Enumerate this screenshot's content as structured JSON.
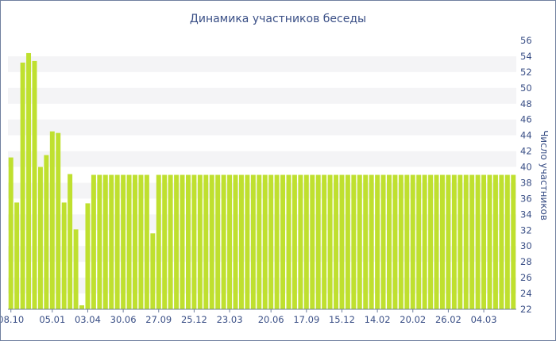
{
  "chart_data": {
    "type": "bar",
    "title": "Динамика участников беседы",
    "ylabel": "Число участников",
    "xlabel": "",
    "ylim": [
      22,
      56
    ],
    "y_ticks": [
      22,
      24,
      26,
      28,
      30,
      32,
      34,
      36,
      38,
      40,
      42,
      44,
      46,
      48,
      50,
      52,
      54,
      56
    ],
    "y_axis_position": "right",
    "grid": "alternating horizontal bands",
    "bar_color": "#bfe02f",
    "x_tick_labels": [
      {
        "index": 0,
        "label": "08.10"
      },
      {
        "index": 7,
        "label": "05.01"
      },
      {
        "index": 13,
        "label": "03.04"
      },
      {
        "index": 19,
        "label": "30.06"
      },
      {
        "index": 25,
        "label": "27.09"
      },
      {
        "index": 31,
        "label": "25.12"
      },
      {
        "index": 37,
        "label": "23.03"
      },
      {
        "index": 44,
        "label": "20.06"
      },
      {
        "index": 50,
        "label": "17.09"
      },
      {
        "index": 56,
        "label": "15.12"
      },
      {
        "index": 62,
        "label": "14.02"
      },
      {
        "index": 68,
        "label": "20.02"
      },
      {
        "index": 74,
        "label": "26.02"
      },
      {
        "index": 80,
        "label": "04.03"
      }
    ],
    "values": [
      41.2,
      35.5,
      53.2,
      54.4,
      53.4,
      40.0,
      41.5,
      44.5,
      44.3,
      35.5,
      39.1,
      32.1,
      22.5,
      35.4,
      39.0,
      39.0,
      39.0,
      39.0,
      39.0,
      39.0,
      39.0,
      39.0,
      39.0,
      39.0,
      31.6,
      39.0,
      39.0,
      39.0,
      39.0,
      39.0,
      39.0,
      39.0,
      39.0,
      39.0,
      39.0,
      39.0,
      39.0,
      39.0,
      39.0,
      39.0,
      39.0,
      39.0,
      39.0,
      39.0,
      39.0,
      39.0,
      39.0,
      39.0,
      39.0,
      39.0,
      39.0,
      39.0,
      39.0,
      39.0,
      39.0,
      39.0,
      39.0,
      39.0,
      39.0,
      39.0,
      39.0,
      39.0,
      39.0,
      39.0,
      39.0,
      39.0,
      39.0,
      39.0,
      39.0,
      39.0,
      39.0,
      39.0,
      39.0,
      39.0,
      39.0,
      39.0,
      39.0,
      39.0,
      39.0,
      39.0,
      39.0,
      39.0,
      39.0,
      39.0,
      39.0,
      39.0
    ]
  }
}
